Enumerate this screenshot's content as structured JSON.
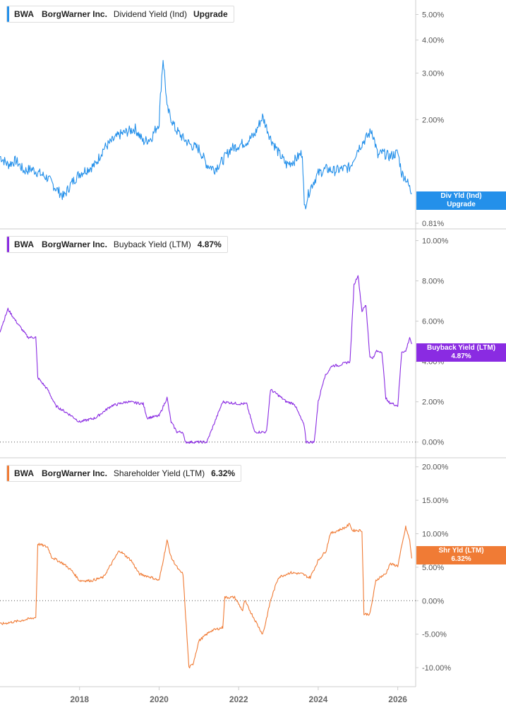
{
  "panels": [
    {
      "ticker": "BWA",
      "company": "BorgWarner Inc.",
      "metric": "Dividend Yield (Ind)",
      "value": "Upgrade",
      "color": "#2490ea",
      "tag_line1": "Div Yld (Ind)",
      "tag_line2": "Upgrade"
    },
    {
      "ticker": "BWA",
      "company": "BorgWarner Inc.",
      "metric": "Buyback Yield (LTM)",
      "value": "4.87%",
      "color": "#8a2be2",
      "tag_line1": "Buyback Yield (LTM)",
      "tag_line2": "4.87%"
    },
    {
      "ticker": "BWA",
      "company": "BorgWarner Inc.",
      "metric": "Shareholder Yield (LTM)",
      "value": "6.32%",
      "color": "#f07b35",
      "tag_line1": "Shr Yld (LTM)",
      "tag_line2": "6.32%"
    }
  ],
  "chart_data": [
    {
      "type": "line",
      "series": [
        {
          "name": "Dividend Yield (Ind)",
          "color": "#2490ea",
          "x": [
            2016.0,
            2016.2,
            2016.4,
            2016.6,
            2016.8,
            2017.0,
            2017.2,
            2017.4,
            2017.6,
            2017.8,
            2018.0,
            2018.2,
            2018.4,
            2018.6,
            2018.8,
            2019.0,
            2019.2,
            2019.4,
            2019.6,
            2019.8,
            2020.0,
            2020.1,
            2020.2,
            2020.4,
            2020.6,
            2020.8,
            2021.0,
            2021.2,
            2021.4,
            2021.6,
            2021.8,
            2022.0,
            2022.2,
            2022.4,
            2022.6,
            2022.8,
            2023.0,
            2023.2,
            2023.4,
            2023.6,
            2023.65,
            2023.8,
            2024.0,
            2024.2,
            2024.4,
            2024.6,
            2024.8,
            2025.0,
            2025.2,
            2025.35,
            2025.5,
            2025.6,
            2025.8,
            2026.0,
            2026.1,
            2026.2,
            2026.35
          ],
          "y": [
            1.45,
            1.35,
            1.4,
            1.28,
            1.3,
            1.25,
            1.2,
            1.1,
            1.02,
            1.15,
            1.25,
            1.3,
            1.35,
            1.55,
            1.65,
            1.75,
            1.8,
            1.85,
            1.65,
            1.7,
            1.95,
            3.4,
            2.2,
            1.85,
            1.7,
            1.6,
            1.55,
            1.35,
            1.3,
            1.4,
            1.55,
            1.6,
            1.65,
            1.75,
            2.05,
            1.7,
            1.5,
            1.35,
            1.4,
            1.5,
            0.92,
            1.1,
            1.25,
            1.3,
            1.28,
            1.3,
            1.32,
            1.55,
            1.7,
            1.82,
            1.45,
            1.5,
            1.45,
            1.5,
            1.25,
            1.2,
            1.05
          ]
        }
      ],
      "yticks": [
        "5.00%",
        "4.00%",
        "3.00%",
        "2.00%",
        "0.81%"
      ],
      "yscale": "log",
      "ylim": [
        0.81,
        5.4
      ],
      "grid": false
    },
    {
      "type": "line",
      "series": [
        {
          "name": "Buyback Yield (LTM)",
          "color": "#8a2be2",
          "x": [
            2016.0,
            2016.2,
            2016.4,
            2016.7,
            2016.9,
            2016.95,
            2017.2,
            2017.4,
            2017.8,
            2018.0,
            2018.4,
            2018.8,
            2019.2,
            2019.6,
            2019.7,
            2020.0,
            2020.2,
            2020.3,
            2020.45,
            2020.6,
            2020.65,
            2021.2,
            2021.6,
            2022.0,
            2022.2,
            2022.4,
            2022.7,
            2022.8,
            2022.95,
            2023.2,
            2023.4,
            2023.65,
            2023.7,
            2023.9,
            2024.0,
            2024.15,
            2024.35,
            2024.5,
            2024.8,
            2024.9,
            2025.0,
            2025.1,
            2025.2,
            2025.3,
            2025.4,
            2025.45,
            2025.6,
            2025.7,
            2025.75,
            2026.0,
            2026.1,
            2026.2,
            2026.3,
            2026.35
          ],
          "y": [
            5.5,
            6.6,
            6.0,
            5.2,
            5.2,
            3.2,
            2.6,
            1.8,
            1.3,
            1.0,
            1.2,
            1.8,
            2.0,
            1.9,
            1.2,
            1.3,
            2.2,
            1.0,
            0.5,
            0.5,
            0.0,
            0.0,
            2.0,
            1.9,
            1.9,
            0.5,
            0.5,
            2.6,
            2.4,
            2.0,
            1.9,
            0.8,
            0.0,
            0.0,
            2.0,
            3.2,
            3.8,
            3.8,
            4.0,
            7.8,
            8.3,
            6.5,
            6.8,
            4.2,
            4.2,
            4.5,
            4.5,
            2.2,
            2.0,
            1.8,
            4.5,
            4.5,
            5.2,
            4.87
          ]
        }
      ],
      "yticks": [
        "10.00%",
        "8.00%",
        "6.00%",
        "4.00%",
        "2.00%",
        "0.00%"
      ],
      "ylim": [
        -0.5,
        10.3
      ],
      "grid": false
    },
    {
      "type": "line",
      "series": [
        {
          "name": "Shareholder Yield (LTM)",
          "color": "#f07b35",
          "x": [
            2016.0,
            2016.5,
            2016.9,
            2016.95,
            2017.2,
            2017.3,
            2017.6,
            2017.8,
            2018.0,
            2018.3,
            2018.6,
            2018.8,
            2019.0,
            2019.3,
            2019.5,
            2019.8,
            2020.0,
            2020.2,
            2020.3,
            2020.5,
            2020.6,
            2020.75,
            2020.85,
            2021.0,
            2021.3,
            2021.6,
            2021.65,
            2021.9,
            2022.1,
            2022.15,
            2022.6,
            2022.65,
            2022.8,
            2023.0,
            2023.3,
            2023.6,
            2023.75,
            2023.8,
            2024.0,
            2024.2,
            2024.3,
            2024.7,
            2024.8,
            2024.85,
            2025.1,
            2025.15,
            2025.3,
            2025.45,
            2025.55,
            2025.7,
            2025.8,
            2026.0,
            2026.2,
            2026.3,
            2026.35
          ],
          "y": [
            -3.5,
            -3.0,
            -2.5,
            8.5,
            8.0,
            6.5,
            5.5,
            4.5,
            3.0,
            3.0,
            3.5,
            5.5,
            7.5,
            6.0,
            4.0,
            3.5,
            3.0,
            9.0,
            6.5,
            4.5,
            4.0,
            -10.0,
            -9.5,
            -6.0,
            -4.5,
            -4.0,
            0.5,
            0.5,
            -1.5,
            0.0,
            -5.0,
            -4.0,
            0.0,
            3.5,
            4.2,
            4.0,
            3.5,
            3.5,
            6.0,
            7.5,
            10.0,
            11.0,
            11.5,
            10.5,
            10.5,
            -2.0,
            -2.0,
            3.0,
            3.5,
            4.0,
            5.5,
            5.2,
            11.0,
            9.0,
            6.32
          ]
        }
      ],
      "yticks": [
        "20.00%",
        "15.00%",
        "10.00%",
        "5.00%",
        "0.00%",
        "-5.00%",
        "-10.00%"
      ],
      "ylim": [
        -12,
        20.5
      ],
      "grid": false
    }
  ],
  "x_axis": {
    "xlim": [
      2016.0,
      2026.45
    ],
    "ticks": [
      "2018",
      "2020",
      "2022",
      "2024",
      "2026"
    ]
  }
}
